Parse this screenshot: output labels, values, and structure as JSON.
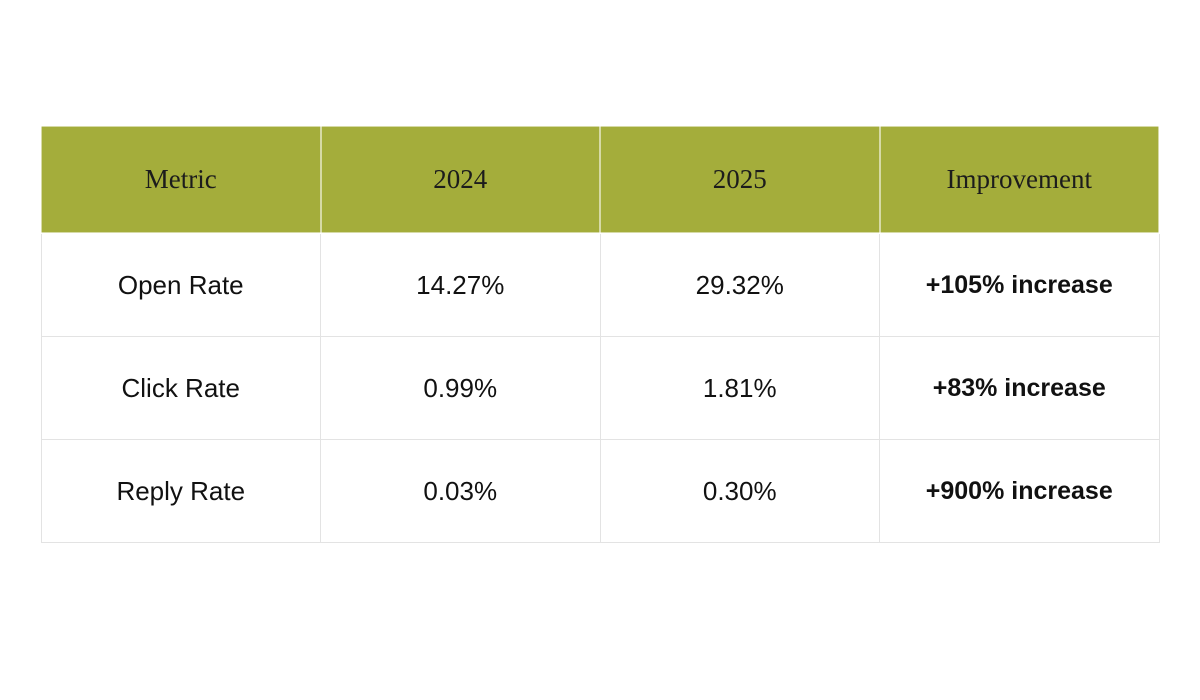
{
  "chart_data": {
    "type": "table",
    "columns": [
      "Metric",
      "2024",
      "2025",
      "Improvement"
    ],
    "rows": [
      [
        "Open Rate",
        "14.27%",
        "29.32%",
        "+105% increase"
      ],
      [
        "Click Rate",
        "0.99%",
        "1.81%",
        "+83% increase"
      ],
      [
        "Reply Rate",
        "0.03%",
        "0.30%",
        "+900% increase"
      ]
    ],
    "colors": {
      "header_bg": "#a4ad3b",
      "header_text": "#1c1c1c",
      "body_text": "#111111",
      "border": "#e3e3e3"
    }
  }
}
